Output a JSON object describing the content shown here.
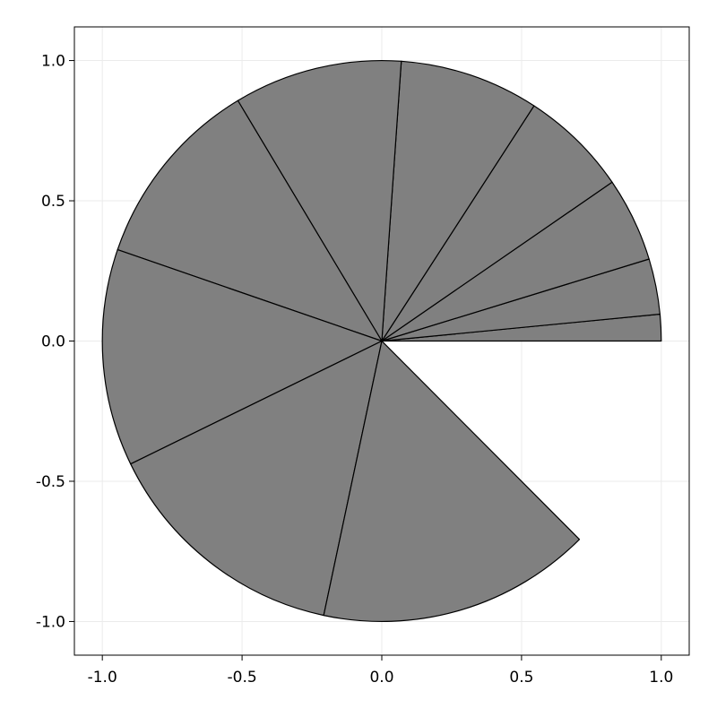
{
  "chart_data": {
    "type": "pie",
    "title": "",
    "xlabel": "",
    "ylabel": "",
    "xlim": [
      -1.1,
      1.1
    ],
    "ylim": [
      -1.12,
      1.12
    ],
    "grid": true,
    "legend": "none",
    "fill_color": "#808080",
    "edge_color": "#000000",
    "radius": 1.0,
    "slices_start_end_deg": [
      [
        0,
        5.5
      ],
      [
        5.5,
        17
      ],
      [
        17,
        34.5
      ],
      [
        34.5,
        57
      ],
      [
        57,
        86
      ],
      [
        86,
        121
      ],
      [
        121,
        161
      ],
      [
        161,
        206
      ],
      [
        206,
        258
      ],
      [
        258,
        315
      ]
    ],
    "x_ticks": [
      {
        "value": -1.0,
        "label": "-1.0"
      },
      {
        "value": -0.5,
        "label": "-0.5"
      },
      {
        "value": 0.0,
        "label": "0.0"
      },
      {
        "value": 0.5,
        "label": "0.5"
      },
      {
        "value": 1.0,
        "label": "1.0"
      }
    ],
    "y_ticks": [
      {
        "value": 1.0,
        "label": "1.0"
      },
      {
        "value": 0.5,
        "label": "0.5"
      },
      {
        "value": 0.0,
        "label": "0.0"
      },
      {
        "value": -0.5,
        "label": "-0.5"
      },
      {
        "value": -1.0,
        "label": "-1.0"
      }
    ]
  }
}
